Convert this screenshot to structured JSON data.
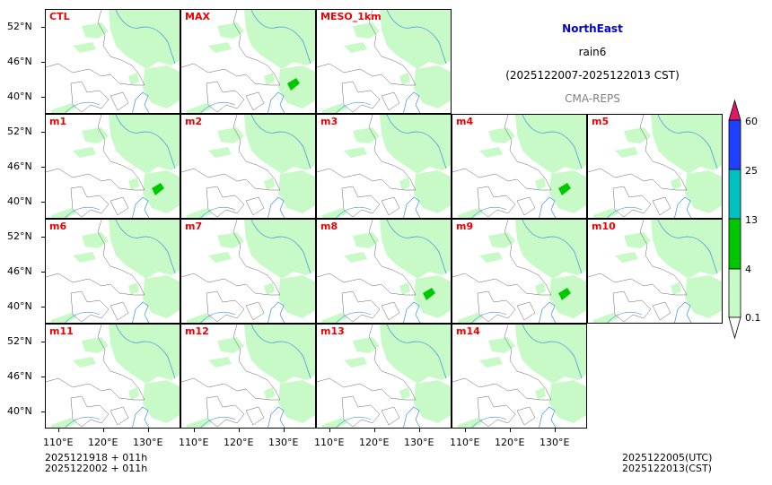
{
  "header": {
    "region": "NorthEast",
    "variable": "rain6",
    "period": "(2025122007-2025122013 CST)",
    "model": "CMA-REPS",
    "region_color": "#0000dd",
    "model_color": "#808080"
  },
  "panels": [
    {
      "label": "CTL",
      "blob": 0
    },
    {
      "label": "MAX",
      "blob": 1
    },
    {
      "label": "MESO_1km",
      "blob": 0
    },
    {
      "label": "m1",
      "blob": 1
    },
    {
      "label": "m2",
      "blob": 0
    },
    {
      "label": "m3",
      "blob": 0
    },
    {
      "label": "m4",
      "blob": 1
    },
    {
      "label": "m5",
      "blob": 0
    },
    {
      "label": "m6",
      "blob": 0
    },
    {
      "label": "m7",
      "blob": 0
    },
    {
      "label": "m8",
      "blob": 1
    },
    {
      "label": "m9",
      "blob": 1
    },
    {
      "label": "m10",
      "blob": 0
    },
    {
      "label": "m11",
      "blob": 0
    },
    {
      "label": "m12",
      "blob": 0
    },
    {
      "label": "m13",
      "blob": 0
    },
    {
      "label": "m14",
      "blob": 0
    }
  ],
  "axes": {
    "lat_ticks": [
      "52°N",
      "46°N",
      "40°N"
    ],
    "lon_ticks": [
      "110°E",
      "120°E",
      "130°E"
    ]
  },
  "colorbar": {
    "ticks": [
      "0.1",
      "4",
      "13",
      "25",
      "60"
    ],
    "colors": [
      "#c8fac8",
      "#00c800",
      "#00c0c0",
      "#2040ff",
      "#e0186a"
    ]
  },
  "footer": {
    "init_utc": "2025121918  +  011h",
    "init_cst": "2025122002  +  011h",
    "valid_utc": "2025122005(UTC)",
    "valid_cst": "2025122013(CST)"
  }
}
